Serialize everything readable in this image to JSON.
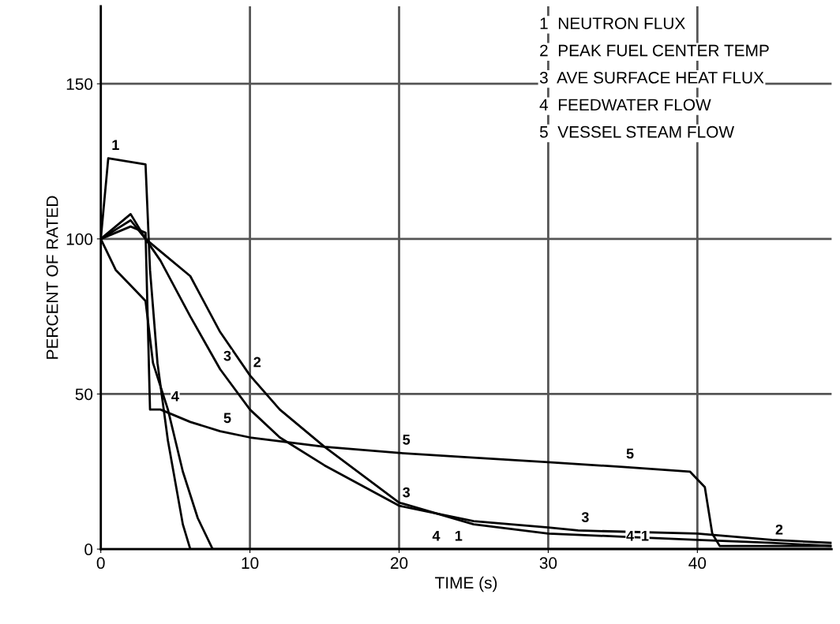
{
  "chart_data": {
    "type": "line",
    "xlabel": "TIME (s)",
    "ylabel": "PERCENT OF RATED",
    "xlim": [
      0,
      49
    ],
    "ylim": [
      0,
      175
    ],
    "xticks": [
      0,
      10,
      20,
      30,
      40
    ],
    "yticks": [
      0,
      50,
      100,
      150
    ],
    "grid": true,
    "marker": "none",
    "line_style": "solid",
    "series": [
      {
        "color": "#000000",
        "x": [
          0,
          0.5,
          3,
          3.3,
          3.8,
          4.5,
          5.5,
          6,
          23.5,
          36,
          49
        ],
        "values": [
          100,
          126,
          124,
          90,
          60,
          35,
          8,
          0,
          0,
          0,
          0
        ]
      },
      {
        "color": "#000000",
        "x": [
          0,
          2,
          3,
          4,
          6,
          8,
          10,
          12,
          15,
          20,
          25,
          30,
          35,
          40,
          45,
          49
        ],
        "values": [
          100,
          108,
          100,
          96,
          88,
          70,
          56,
          45,
          33,
          15,
          8,
          5,
          4,
          3,
          2,
          1
        ]
      },
      {
        "color": "#000000",
        "x": [
          0,
          2,
          3,
          4,
          6,
          8,
          10,
          12,
          15,
          20,
          25,
          30,
          32,
          40,
          45,
          49
        ],
        "values": [
          100,
          106,
          100,
          93,
          75,
          58,
          45,
          36,
          27,
          14,
          9,
          7,
          6,
          5,
          3,
          2
        ]
      },
      {
        "color": "#000000",
        "x": [
          0,
          1,
          2,
          3,
          3.5,
          4.5,
          5.5,
          6.5,
          7.5,
          22,
          35,
          49
        ],
        "values": [
          100,
          90,
          85,
          80,
          60,
          45,
          25,
          10,
          0,
          0,
          0,
          0
        ]
      },
      {
        "color": "#000000",
        "x": [
          0,
          2,
          3,
          3.3,
          4,
          6,
          8,
          10,
          15,
          20,
          25,
          30,
          35,
          39.5,
          40.5,
          41,
          41.5,
          49
        ],
        "values": [
          100,
          104,
          102,
          45,
          45,
          41,
          38,
          36,
          33,
          31,
          29.5,
          28,
          26.5,
          25,
          20,
          5,
          1,
          1
        ]
      }
    ],
    "annotations": [
      "1  NEUTRON FLUX",
      "2  PEAK FUEL CENTER TEMP",
      "3  AVE SURFACE HEAT FLUX",
      "4  FEEDWATER FLOW",
      "5  VESSEL STEAM FLOW",
      {
        "text": "1",
        "x": 0.5,
        "y": 126
      },
      {
        "text": "4",
        "x": 4.5,
        "y": 45
      },
      {
        "text": "2",
        "x": 10,
        "y": 56
      },
      {
        "text": "3",
        "x": 8,
        "y": 58
      },
      {
        "text": "5",
        "x": 8,
        "y": 38
      },
      {
        "text": "5",
        "x": 20,
        "y": 31
      },
      {
        "text": "5",
        "x": 35,
        "y": 26.5
      },
      {
        "text": "3",
        "x": 20,
        "y": 14
      },
      {
        "text": "3",
        "x": 32,
        "y": 6
      },
      {
        "text": "2",
        "x": 45,
        "y": 2
      },
      {
        "text": "4",
        "x": 22,
        "y": 0
      },
      {
        "text": "1",
        "x": 23.5,
        "y": 0
      },
      {
        "text": "4",
        "x": 35,
        "y": 0
      },
      {
        "text": "1",
        "x": 36,
        "y": 0
      }
    ]
  }
}
